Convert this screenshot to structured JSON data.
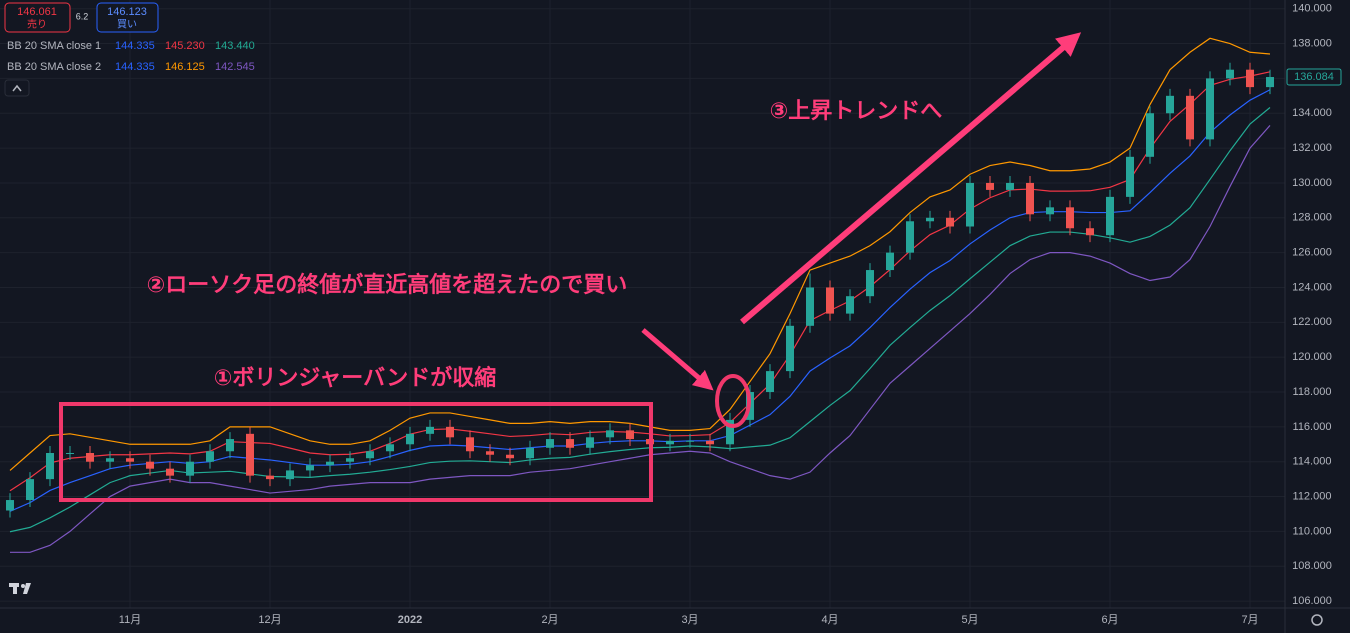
{
  "toolbar": {
    "sell_price": "146.061",
    "sell_label": "売り",
    "spread": "6.2",
    "buy_price": "146.123",
    "buy_label": "買い"
  },
  "legend": [
    {
      "name": "BB 20 SMA close 1",
      "values": [
        "144.335",
        "145.230",
        "143.440"
      ],
      "colors": [
        "#2962ff",
        "#f23645",
        "#22ab94"
      ]
    },
    {
      "name": "BB 20 SMA close 2",
      "values": [
        "144.335",
        "146.125",
        "142.545"
      ],
      "colors": [
        "#2962ff",
        "#ff9800",
        "#7e57c2"
      ]
    }
  ],
  "annotations": [
    "②ローソク足の終値が直近高値を超えたので買い",
    "①ボリンジャーバンドが収縮",
    "③上昇トレンドへ"
  ],
  "chart_data": {
    "type": "candlestick",
    "categories": [
      null,
      null,
      null,
      null,
      null,
      null,
      "11月",
      null,
      null,
      null,
      null,
      null,
      null,
      "12月",
      null,
      null,
      null,
      null,
      null,
      null,
      "2022",
      null,
      null,
      null,
      null,
      null,
      null,
      "2月",
      null,
      null,
      null,
      null,
      null,
      null,
      "3月",
      null,
      null,
      null,
      null,
      null,
      null,
      "4月",
      null,
      null,
      null,
      null,
      null,
      null,
      "5月",
      null,
      null,
      null,
      null,
      null,
      null,
      "6月",
      null,
      null,
      null,
      null,
      null,
      null,
      "7月",
      null
    ],
    "open": [
      111.2,
      111.8,
      113,
      114.5,
      114.5,
      114,
      114.2,
      114,
      113.6,
      113.2,
      114,
      114.6,
      115.6,
      113.2,
      113,
      113.5,
      113.8,
      114,
      114.2,
      114.6,
      115,
      115.6,
      116,
      115.4,
      114.6,
      114.4,
      114.2,
      114.8,
      115.3,
      114.8,
      115.4,
      115.8,
      115.3,
      115,
      115.2,
      115.2,
      115,
      116.4,
      118,
      119.2,
      121.8,
      124,
      122.5,
      123.5,
      125,
      126,
      127.8,
      128,
      127.5,
      130,
      129.6,
      130,
      128.2,
      128.6,
      127.4,
      127,
      129.2,
      131.5,
      134,
      135,
      132.5,
      136,
      136.5,
      135.5
    ],
    "high": [
      112.2,
      113.4,
      114.9,
      114.9,
      114.9,
      114.6,
      114.6,
      114.4,
      114,
      114.4,
      115,
      115.7,
      116,
      113.6,
      113.9,
      114.2,
      114.4,
      114.6,
      115,
      115.4,
      116,
      116.4,
      116.4,
      115.8,
      115,
      114.8,
      115.2,
      115.7,
      115.7,
      115.8,
      116.2,
      116.2,
      115.7,
      115.6,
      115.6,
      115.6,
      116.8,
      118.4,
      119.6,
      122.2,
      124.8,
      124.4,
      123.9,
      125.4,
      126.4,
      128.2,
      128.4,
      128.4,
      130.4,
      130.4,
      130.4,
      130.4,
      129,
      129,
      127.8,
      129.6,
      131.9,
      134.4,
      135.4,
      135.4,
      136.4,
      136.9,
      136.9,
      136.5
    ],
    "low": [
      110.8,
      111.4,
      112.6,
      114.1,
      113.6,
      113.6,
      113.6,
      113.2,
      112.8,
      112.8,
      113.6,
      114.2,
      112.8,
      112.6,
      112.6,
      113.1,
      113.4,
      113.6,
      113.8,
      114.2,
      114.6,
      115.2,
      115,
      114.2,
      114,
      113.8,
      113.8,
      114.4,
      114.4,
      114.4,
      115,
      114.9,
      114.6,
      114.6,
      114.8,
      114.6,
      114.6,
      116,
      117.6,
      118.8,
      121.4,
      122.1,
      122.1,
      123.1,
      124.6,
      125.6,
      127.4,
      127.1,
      127.1,
      129.2,
      129.2,
      127.8,
      127.8,
      127,
      126.6,
      126.6,
      128.8,
      131.1,
      133.6,
      132.1,
      132.1,
      135.6,
      135.1,
      135.1
    ],
    "close": [
      111.8,
      113,
      114.5,
      114.5,
      114,
      114.2,
      114,
      113.6,
      113.2,
      114,
      114.6,
      115.3,
      113.2,
      113,
      113.5,
      113.8,
      114,
      114.2,
      114.6,
      115,
      115.6,
      116,
      115.4,
      114.6,
      114.4,
      114.2,
      114.8,
      115.3,
      114.8,
      115.4,
      115.8,
      115.3,
      115,
      115.2,
      115.2,
      115,
      116.4,
      118,
      119.2,
      121.8,
      124,
      122.5,
      123.5,
      125,
      126,
      127.8,
      128,
      127.5,
      130,
      129.6,
      130,
      128.2,
      128.6,
      127.4,
      127,
      129.2,
      131.5,
      134,
      135,
      132.5,
      136,
      136.5,
      135.5,
      136.08
    ],
    "up_color": "#26a69a",
    "down_color": "#ef5350",
    "bands": [
      {
        "color": "#ff9800",
        "values": [
          113.5,
          114.5,
          115.5,
          115.6,
          115.4,
          115.2,
          115,
          115,
          115,
          115,
          115.2,
          116,
          116,
          116,
          115.6,
          115.2,
          115,
          115,
          115.2,
          115.8,
          116.5,
          116.8,
          116.8,
          116.6,
          116.4,
          116.2,
          116.2,
          116.3,
          116.2,
          116.3,
          116.3,
          116.2,
          116,
          115.8,
          115.8,
          115.9,
          117,
          118.6,
          120.2,
          122.5,
          125,
          125.4,
          125.8,
          126.4,
          127.2,
          128.3,
          129.2,
          129.6,
          130.5,
          131,
          131.2,
          131,
          130.7,
          130.7,
          130.8,
          131.2,
          132,
          134.5,
          136.5,
          137.5,
          138.3,
          138,
          137.5,
          137.4
        ]
      },
      {
        "color": "#f23645",
        "values": [
          112.33,
          113.08,
          113.93,
          114.2,
          114.3,
          114.4,
          114.4,
          114.45,
          114.5,
          114.45,
          114.6,
          115.15,
          115.1,
          115.05,
          114.78,
          114.5,
          114.4,
          114.43,
          114.6,
          115.05,
          115.58,
          115.85,
          115.88,
          115.75,
          115.6,
          115.45,
          115.5,
          115.6,
          115.55,
          115.68,
          115.73,
          115.7,
          115.6,
          115.48,
          115.5,
          115.55,
          116.25,
          117.35,
          118.45,
          120.13,
          122.1,
          122.68,
          123.23,
          124.05,
          125.03,
          126.1,
          127.03,
          127.58,
          128.5,
          129.15,
          129.6,
          129.65,
          129.53,
          129.53,
          129.55,
          129.75,
          130.2,
          131.98,
          133.53,
          134.53,
          135.6,
          135.95,
          136.13,
          136.38
        ]
      },
      {
        "color": "#2962ff",
        "values": [
          111.15,
          111.65,
          112.35,
          112.8,
          113.2,
          113.6,
          113.8,
          113.9,
          114,
          113.9,
          114,
          114.3,
          114.2,
          114.1,
          113.95,
          113.8,
          113.8,
          113.85,
          114,
          114.3,
          114.65,
          114.9,
          114.95,
          114.9,
          114.8,
          114.7,
          114.8,
          114.9,
          114.9,
          115.05,
          115.15,
          115.2,
          115.2,
          115.15,
          115.2,
          115.2,
          115.5,
          116.1,
          116.7,
          117.75,
          119.2,
          119.95,
          120.65,
          121.7,
          122.85,
          123.9,
          124.85,
          125.55,
          126.5,
          127.3,
          128,
          128.3,
          128.35,
          128.35,
          128.3,
          128.3,
          128.4,
          129.45,
          130.55,
          131.55,
          132.9,
          133.9,
          134.75,
          135.35
        ]
      },
      {
        "color": "#22ab94",
        "values": [
          109.98,
          110.23,
          110.78,
          111.4,
          112.1,
          112.8,
          113.2,
          113.35,
          113.5,
          113.35,
          113.4,
          113.45,
          113.3,
          113.15,
          113.13,
          113.1,
          113.2,
          113.28,
          113.4,
          113.55,
          113.73,
          113.95,
          114.03,
          114.05,
          114,
          113.95,
          114.1,
          114.2,
          114.25,
          114.43,
          114.58,
          114.7,
          114.8,
          114.83,
          114.9,
          114.85,
          114.75,
          114.85,
          114.95,
          115.38,
          116.3,
          117.23,
          118.08,
          119.35,
          120.68,
          121.7,
          122.68,
          123.53,
          124.5,
          125.45,
          126.4,
          126.95,
          127.18,
          127.18,
          127.05,
          126.85,
          126.6,
          126.93,
          127.58,
          128.58,
          130.2,
          131.85,
          133.38,
          134.33
        ]
      },
      {
        "color": "#7e57c2",
        "values": [
          108.8,
          108.8,
          109.2,
          110,
          111,
          112,
          112.6,
          112.8,
          113,
          112.8,
          112.8,
          112.6,
          112.4,
          112.2,
          112.3,
          112.4,
          112.6,
          112.7,
          112.8,
          112.8,
          112.8,
          113,
          113.1,
          113.2,
          113.2,
          113.2,
          113.4,
          113.5,
          113.6,
          113.8,
          114,
          114.2,
          114.4,
          114.5,
          114.6,
          114.5,
          114,
          113.6,
          113.2,
          113,
          113.4,
          114.5,
          115.5,
          117,
          118.5,
          119.5,
          120.5,
          121.5,
          122.5,
          123.6,
          124.8,
          125.6,
          126,
          126,
          125.8,
          125.4,
          124.8,
          124.4,
          124.6,
          125.6,
          127.5,
          129.8,
          132,
          133.3
        ]
      }
    ],
    "last_price": {
      "value": 136.084,
      "label": "136.084"
    },
    "ylim": [
      104.8,
      140.5
    ],
    "yticks": [
      {
        "value": 106,
        "label": "106.000"
      },
      {
        "value": 108,
        "label": "108.000"
      },
      {
        "value": 110,
        "label": "110.000"
      },
      {
        "value": 112,
        "label": "112.000"
      },
      {
        "value": 114,
        "label": "114.000"
      },
      {
        "value": 116,
        "label": "116.000"
      },
      {
        "value": 118,
        "label": "118.000"
      },
      {
        "value": 120,
        "label": "120.000"
      },
      {
        "value": 122,
        "label": "122.000"
      },
      {
        "value": 124,
        "label": "124.000"
      },
      {
        "value": 126,
        "label": "126.000"
      },
      {
        "value": 128,
        "label": "128.000"
      },
      {
        "value": 130,
        "label": "130.000"
      },
      {
        "value": 132,
        "label": "132.000"
      },
      {
        "value": 134,
        "label": "134.000"
      },
      {
        "value": 136,
        "label": "136.000"
      },
      {
        "value": 138,
        "label": "138.000"
      },
      {
        "value": 140,
        "label": "140.000"
      }
    ],
    "grid": true
  }
}
